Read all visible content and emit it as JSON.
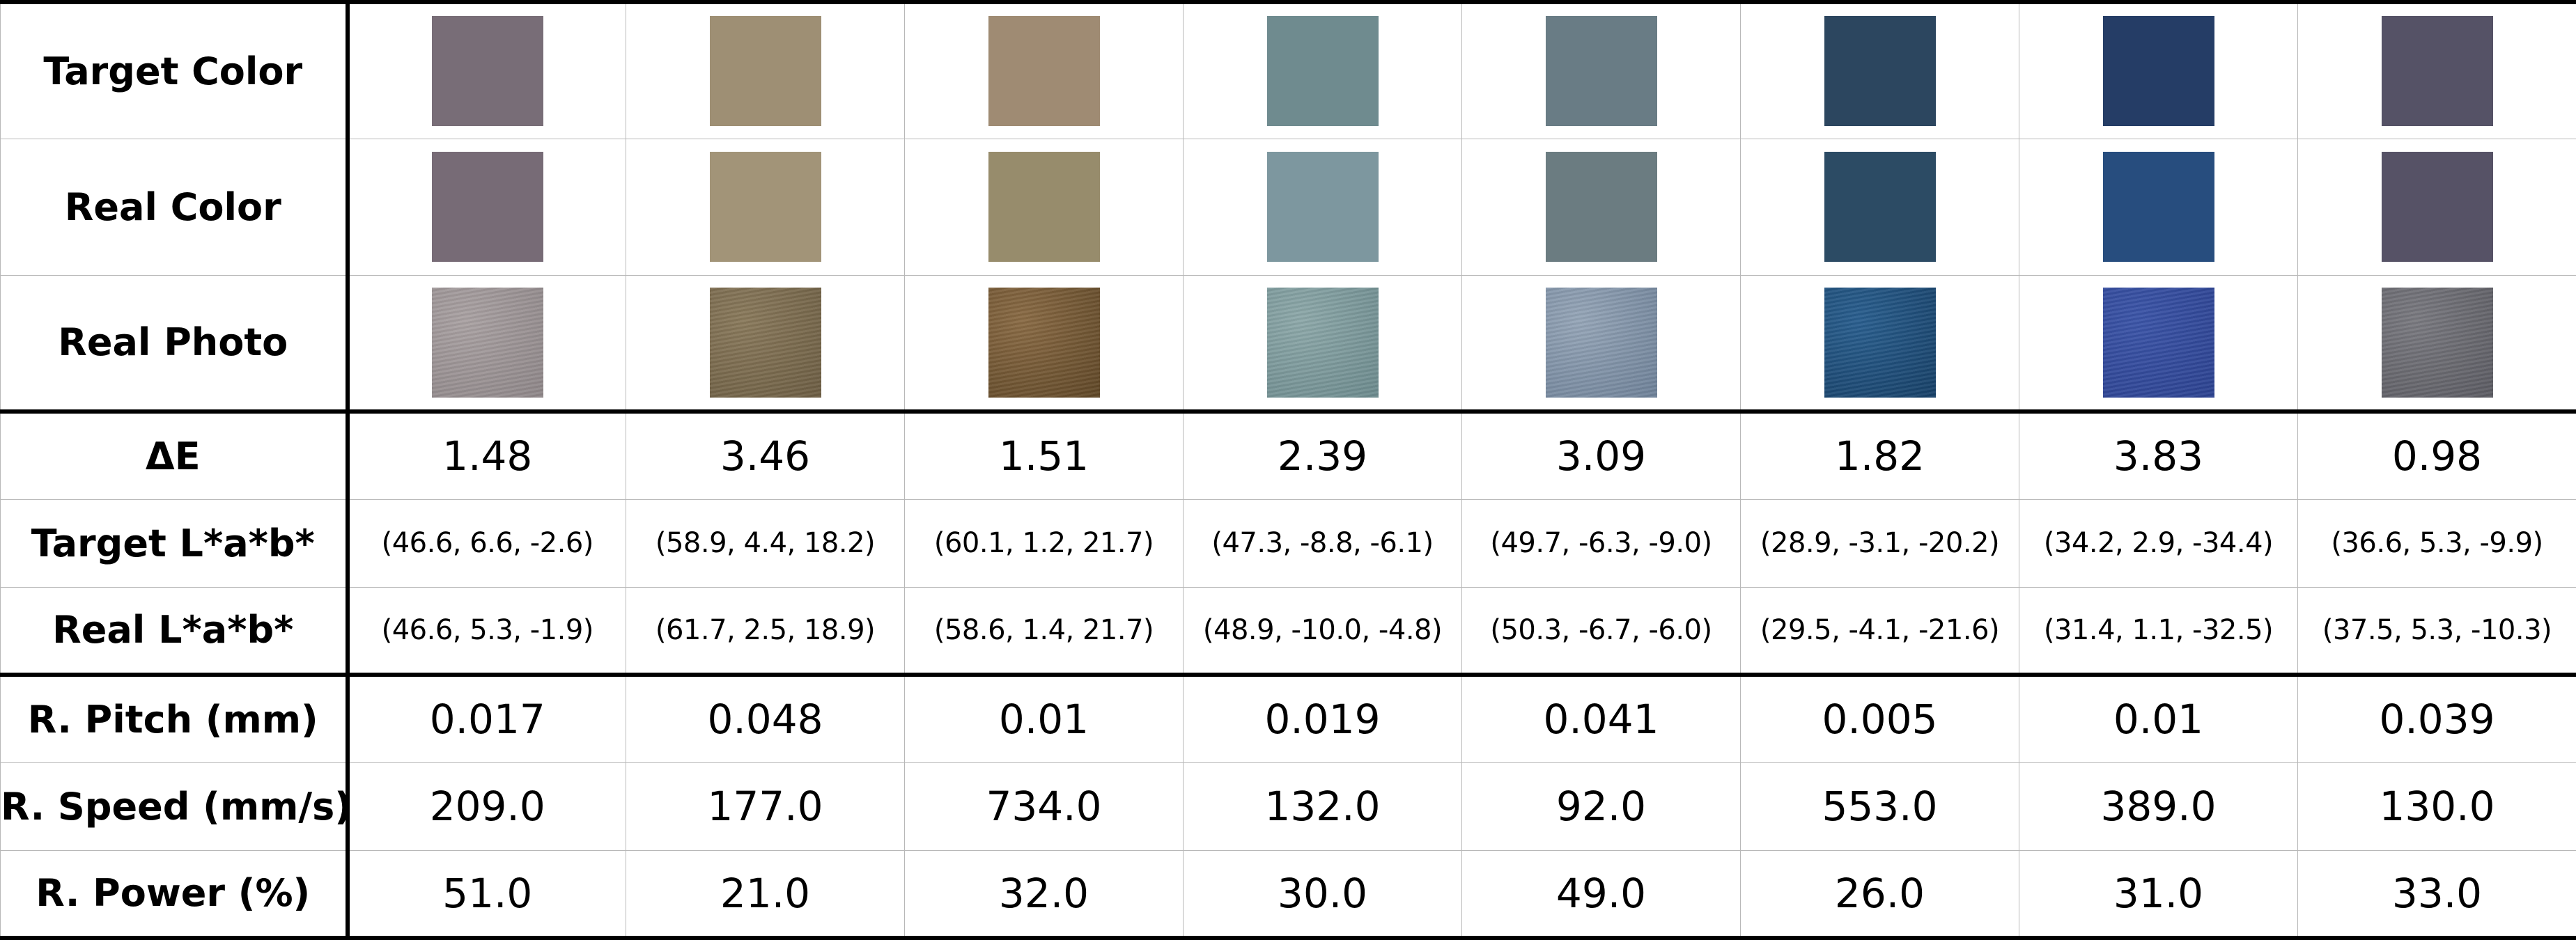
{
  "rows": {
    "target_color": "Target Color",
    "real_color": "Real Color",
    "real_photo": "Real Photo",
    "delta_e": "ΔE",
    "target_lab": "Target L*a*b*",
    "real_lab": "Real L*a*b*",
    "pitch": "R. Pitch (mm)",
    "speed": "R. Speed (mm/s)",
    "power": "R. Power (%)"
  },
  "samples": [
    {
      "target_hex": "#786d77",
      "real_hex": "#776b76",
      "photo_hex": "#aaa2a3",
      "photo_hex2": "#8e8688",
      "delta_e": "1.48",
      "target_lab": "(46.6, 6.6, -2.6)",
      "real_lab": "(46.6, 5.3, -1.9)",
      "pitch": "0.017",
      "speed": "209.0",
      "power": "51.0"
    },
    {
      "target_hex": "#9e8f74",
      "real_hex": "#a29478",
      "photo_hex": "#8a7a5c",
      "photo_hex2": "#6c5d43",
      "delta_e": "3.46",
      "target_lab": "(58.9, 4.4, 18.2)",
      "real_lab": "(61.7, 2.5, 18.9)",
      "pitch": "0.048",
      "speed": "177.0",
      "power": "21.0"
    },
    {
      "target_hex": "#9f8b73",
      "real_hex": "#978c6c",
      "photo_hex": "#8a6b45",
      "photo_hex2": "#5f4727",
      "delta_e": "1.51",
      "target_lab": "(60.1, 1.2, 21.7)",
      "real_lab": "(58.6, 1.4, 21.7)",
      "pitch": "0.01",
      "speed": "734.0",
      "power": "32.0"
    },
    {
      "target_hex": "#6f8b8f",
      "real_hex": "#7d979f",
      "photo_hex": "#8ea9aa",
      "photo_hex2": "#6c8a8d",
      "delta_e": "2.39",
      "target_lab": "(47.3, -8.8, -6.1)",
      "real_lab": "(48.9, -10.0, -4.8)",
      "pitch": "0.019",
      "speed": "132.0",
      "power": "30.0"
    },
    {
      "target_hex": "#697c85",
      "real_hex": "#6b7c81",
      "photo_hex": "#96a6b8",
      "photo_hex2": "#6e8198",
      "delta_e": "3.09",
      "target_lab": "(49.7, -6.3, -9.0)",
      "real_lab": "(50.3, -6.7, -6.0)",
      "pitch": "0.041",
      "speed": "92.0",
      "power": "49.0"
    },
    {
      "target_hex": "#2c465f",
      "real_hex": "#2c4b64",
      "photo_hex": "#2a5f8f",
      "photo_hex2": "#174067",
      "delta_e": "1.82",
      "target_lab": "(28.9, -3.1, -20.2)",
      "real_lab": "(29.5, -4.1, -21.6)",
      "pitch": "0.005",
      "speed": "553.0",
      "power": "26.0"
    },
    {
      "target_hex": "#253d66",
      "real_hex": "#274d7e",
      "photo_hex": "#3c55a8",
      "photo_hex2": "#2c4290",
      "delta_e": "3.83",
      "target_lab": "(34.2, 2.9, -34.4)",
      "real_lab": "(31.4, 1.1, -32.5)",
      "pitch": "0.01",
      "speed": "389.0",
      "power": "31.0"
    },
    {
      "target_hex": "#555266",
      "real_hex": "#565266",
      "photo_hex": "#7a7a80",
      "photo_hex2": "#5b5b62",
      "delta_e": "0.98",
      "target_lab": "(36.6, 5.3, -9.9)",
      "real_lab": "(37.5, 5.3, -10.3)",
      "pitch": "0.039",
      "speed": "130.0",
      "power": "33.0"
    }
  ]
}
